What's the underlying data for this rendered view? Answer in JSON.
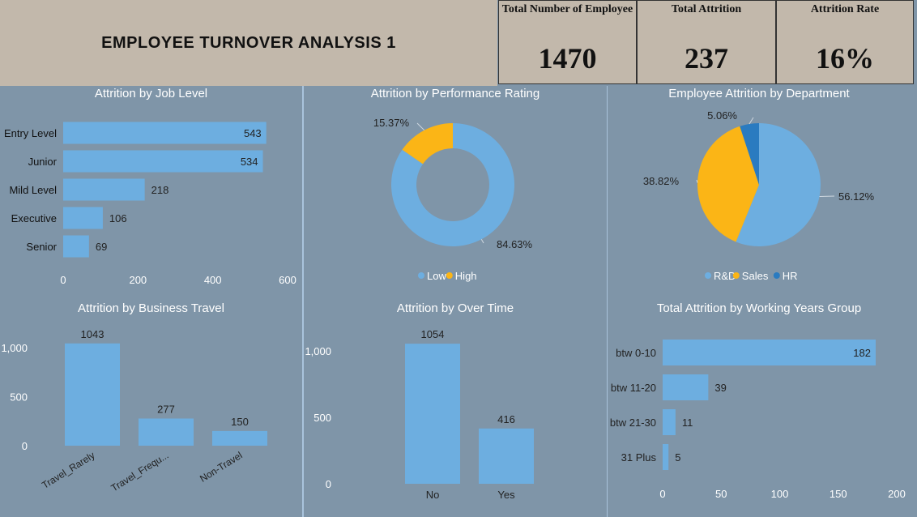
{
  "dashboard": {
    "title": "EMPLOYEE TURNOVER ANALYSIS 1"
  },
  "kpis": [
    {
      "label": "Total Number of Employee",
      "value": "1470"
    },
    {
      "label": "Total Attrition",
      "value": "237"
    },
    {
      "label": "Attrition Rate",
      "value": "16%"
    }
  ],
  "colors": {
    "header_bg": "#c2b8ab",
    "panel_bg": "#7f95a8",
    "bar_blue": "#6daee0",
    "accent_yellow": "#fbb516",
    "dark_blue": "#2a7bc0"
  },
  "chart_data": [
    {
      "id": "job_level",
      "type": "bar",
      "orientation": "horizontal",
      "title": "Attrition by Job Level",
      "categories": [
        "Entry Level",
        "Junior",
        "Mild Level",
        "Executive",
        "Senior"
      ],
      "values": [
        543,
        534,
        218,
        106,
        69
      ],
      "xlim": [
        0,
        600
      ],
      "xticks": [
        "0",
        "200",
        "400",
        "600"
      ]
    },
    {
      "id": "performance",
      "type": "pie",
      "donut": true,
      "title": "Attrition by Performance Rating",
      "categories": [
        "Low",
        "High"
      ],
      "values": [
        84.63,
        15.37
      ],
      "labels": [
        "84.63%",
        "15.37%"
      ],
      "colors": [
        "#6daee0",
        "#fbb516"
      ],
      "legend": "bottom"
    },
    {
      "id": "department",
      "type": "pie",
      "title": "Employee Attrition by Department",
      "categories": [
        "R&D",
        "Sales",
        "HR"
      ],
      "values": [
        56.12,
        38.82,
        5.06
      ],
      "labels": [
        "56.12%",
        "38.82%",
        "5.06%"
      ],
      "colors": [
        "#6daee0",
        "#fbb516",
        "#2a7bc0"
      ],
      "legend": "bottom"
    },
    {
      "id": "business_travel",
      "type": "bar",
      "orientation": "vertical",
      "title": "Attrition by Business Travel",
      "categories": [
        "Travel_Rarely",
        "Travel_Frequ...",
        "Non-Travel"
      ],
      "values": [
        1043,
        277,
        150
      ],
      "ylim": [
        0,
        1000
      ],
      "yticks": [
        "0",
        "500",
        "1,000"
      ]
    },
    {
      "id": "over_time",
      "type": "bar",
      "orientation": "vertical",
      "title": "Attrition by Over Time",
      "categories": [
        "No",
        "Yes"
      ],
      "values": [
        1054,
        416
      ],
      "ylim": [
        0,
        1000
      ],
      "yticks": [
        "0",
        "500",
        "1,000"
      ]
    },
    {
      "id": "working_years",
      "type": "bar",
      "orientation": "horizontal",
      "title": "Total Attrition by Working Years Group",
      "categories": [
        "btw 0-10",
        "btw 11-20",
        "btw 21-30",
        "31 Plus"
      ],
      "values": [
        182,
        39,
        11,
        5
      ],
      "xlim": [
        0,
        200
      ],
      "xticks": [
        "0",
        "50",
        "100",
        "150",
        "200"
      ]
    }
  ]
}
